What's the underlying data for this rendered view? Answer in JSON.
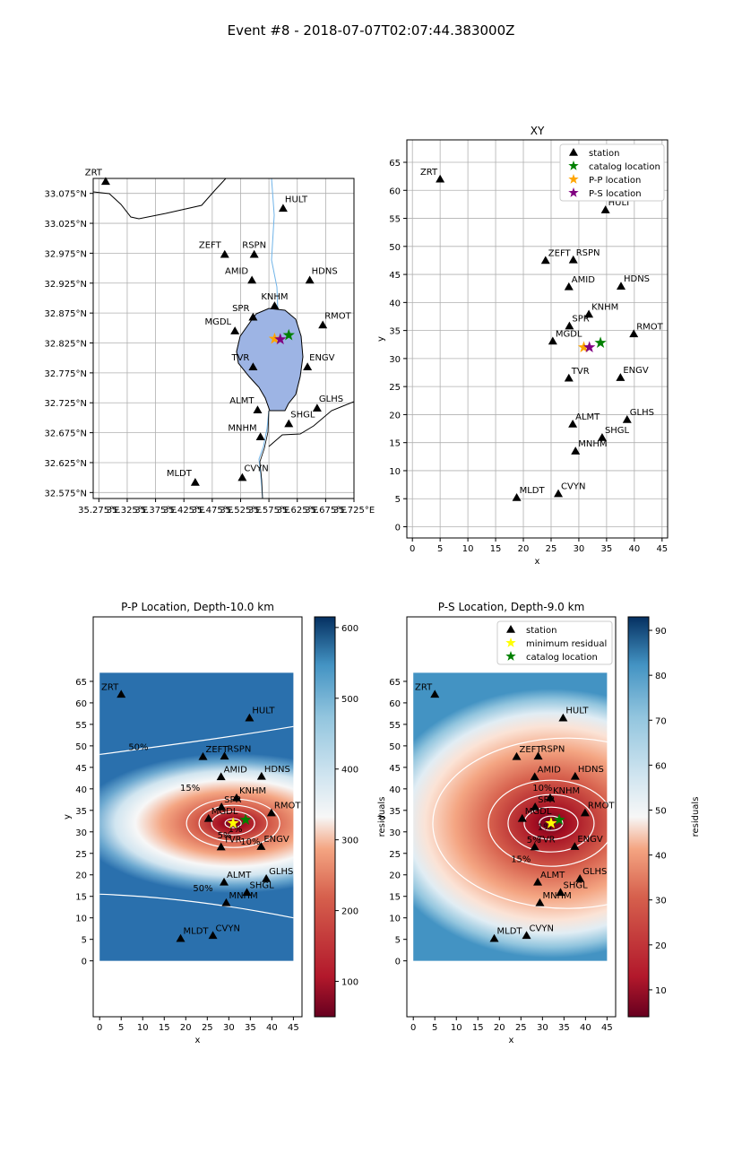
{
  "suptitle": "Event #8 - 2018-07-07T02:07:44.383000Z",
  "colors": {
    "station": "#000000",
    "catalog": "#008000",
    "pp": "#ffa500",
    "ps": "#800080",
    "min_residual": "#ffff00",
    "lake": "#9db4e4",
    "river": "#6fb3e8",
    "contour": "#ffffff"
  },
  "stations": [
    {
      "name": "ZRT",
      "x": 5,
      "y": 62,
      "lon": 35.287,
      "lat": 33.095
    },
    {
      "name": "HULT",
      "x": 34.8,
      "y": 56.5,
      "lon": 35.6,
      "lat": 33.05
    },
    {
      "name": "ZEFT",
      "x": 24,
      "y": 47.5,
      "lon": 35.497,
      "lat": 32.973
    },
    {
      "name": "RSPN",
      "x": 29,
      "y": 47.6,
      "lon": 35.549,
      "lat": 32.973
    },
    {
      "name": "AMID",
      "x": 28.2,
      "y": 42.8,
      "lon": 35.545,
      "lat": 32.93
    },
    {
      "name": "HDNS",
      "x": 37.6,
      "y": 42.9,
      "lon": 35.647,
      "lat": 32.93
    },
    {
      "name": "KNHM",
      "x": 31.8,
      "y": 37.9,
      "lon": 35.585,
      "lat": 32.887
    },
    {
      "name": "SPR",
      "x": 28.3,
      "y": 35.8,
      "lon": 35.547,
      "lat": 32.868
    },
    {
      "name": "MGDL",
      "x": 25.3,
      "y": 33.1,
      "lon": 35.515,
      "lat": 32.845
    },
    {
      "name": "RMOT",
      "x": 39.9,
      "y": 34.4,
      "lon": 35.67,
      "lat": 32.855
    },
    {
      "name": "TVR",
      "x": 28.2,
      "y": 26.5,
      "lon": 35.547,
      "lat": 32.785
    },
    {
      "name": "ENGV",
      "x": 37.5,
      "y": 26.6,
      "lon": 35.643,
      "lat": 32.785
    },
    {
      "name": "ALMT",
      "x": 28.9,
      "y": 18.3,
      "lon": 35.555,
      "lat": 32.713
    },
    {
      "name": "GLHS",
      "x": 38.7,
      "y": 19.1,
      "lon": 35.66,
      "lat": 32.716
    },
    {
      "name": "SHGL",
      "x": 34.2,
      "y": 15.9,
      "lon": 35.61,
      "lat": 32.69
    },
    {
      "name": "MNHM",
      "x": 29.4,
      "y": 13.5,
      "lon": 35.56,
      "lat": 32.668
    },
    {
      "name": "MLDT",
      "x": 18.8,
      "y": 5.2,
      "lon": 35.445,
      "lat": 32.592
    },
    {
      "name": "CVYN",
      "x": 26.3,
      "y": 5.9,
      "lon": 35.528,
      "lat": 32.6
    }
  ],
  "map": {
    "xticks": [
      "35.275°E",
      "35.325°E",
      "35.375°E",
      "35.425°E",
      "35.475°E",
      "35.525°E",
      "35.575°E",
      "35.625°E",
      "35.675°E",
      "35.725°E"
    ],
    "yticks": [
      "33.075°N",
      "33.025°N",
      "32.975°N",
      "32.925°N",
      "32.875°N",
      "32.825°N",
      "32.775°N",
      "32.725°N",
      "32.675°N",
      "32.625°N",
      "32.575°N"
    ],
    "catalog": {
      "lon": 35.61,
      "lat": 32.838
    },
    "pp": {
      "lon": 35.585,
      "lat": 32.832
    },
    "ps": {
      "lon": 35.595,
      "lat": 32.831
    }
  },
  "xy_plot": {
    "title": "XY",
    "xlabel": "x",
    "ylabel": "y",
    "xlim": [
      -1,
      46
    ],
    "ylim": [
      -2,
      69
    ],
    "xticks": [
      "0",
      "5",
      "10",
      "15",
      "20",
      "25",
      "30",
      "35",
      "40",
      "45"
    ],
    "yticks": [
      "0",
      "5",
      "10",
      "15",
      "20",
      "25",
      "30",
      "35",
      "40",
      "45",
      "50",
      "55",
      "60",
      "65"
    ],
    "legend": [
      "station",
      "catalog location",
      "P-P location",
      "P-S location"
    ],
    "catalog": {
      "x": 33.9,
      "y": 32.8
    },
    "pp": {
      "x": 30.9,
      "y": 32.0
    },
    "ps": {
      "x": 31.9,
      "y": 32.0
    }
  },
  "pp_plot": {
    "title": "P-P Location, Depth-10.0 km",
    "xlabel": "x",
    "ylabel": "y",
    "xlim": [
      -1.5,
      47
    ],
    "ylim": [
      -13,
      80
    ],
    "xticks": [
      "0",
      "5",
      "10",
      "15",
      "20",
      "25",
      "30",
      "35",
      "40",
      "45"
    ],
    "yticks": [
      "0",
      "5",
      "10",
      "15",
      "20",
      "25",
      "30",
      "35",
      "40",
      "45",
      "50",
      "55",
      "60",
      "65"
    ],
    "grid": {
      "x": [
        0,
        45
      ],
      "y": [
        0,
        67
      ]
    },
    "min": {
      "x": 31,
      "y": 32
    },
    "catalog": {
      "x": 33.9,
      "y": 32.8
    },
    "colorbar_label": "residuals",
    "colorbar_ticks": [
      "100",
      "200",
      "300",
      "400",
      "500",
      "600"
    ],
    "colorbar_range": [
      50,
      615
    ],
    "contour_labels": [
      "50%",
      "15%",
      "10%",
      "5%",
      "1%",
      "50%"
    ]
  },
  "ps_plot": {
    "title": "P-S Location, Depth-9.0 km",
    "xlabel": "x",
    "ylabel": "y",
    "xlim": [
      -1.5,
      47
    ],
    "ylim": [
      -13,
      80
    ],
    "xticks": [
      "0",
      "5",
      "10",
      "15",
      "20",
      "25",
      "30",
      "35",
      "40",
      "45"
    ],
    "yticks": [
      "0",
      "5",
      "10",
      "15",
      "20",
      "25",
      "30",
      "35",
      "40",
      "45",
      "50",
      "55",
      "60",
      "65"
    ],
    "grid": {
      "x": [
        0,
        45
      ],
      "y": [
        0,
        67
      ]
    },
    "min": {
      "x": 32,
      "y": 32
    },
    "catalog": {
      "x": 33.9,
      "y": 32.8
    },
    "legend": [
      "station",
      "minimum residual",
      "catalog location"
    ],
    "colorbar_label": "residuals",
    "colorbar_ticks": [
      "10",
      "20",
      "30",
      "40",
      "50",
      "60",
      "70",
      "80",
      "90"
    ],
    "colorbar_range": [
      4,
      93
    ],
    "contour_labels": [
      "10%",
      "1%",
      "5%",
      "15%"
    ]
  }
}
